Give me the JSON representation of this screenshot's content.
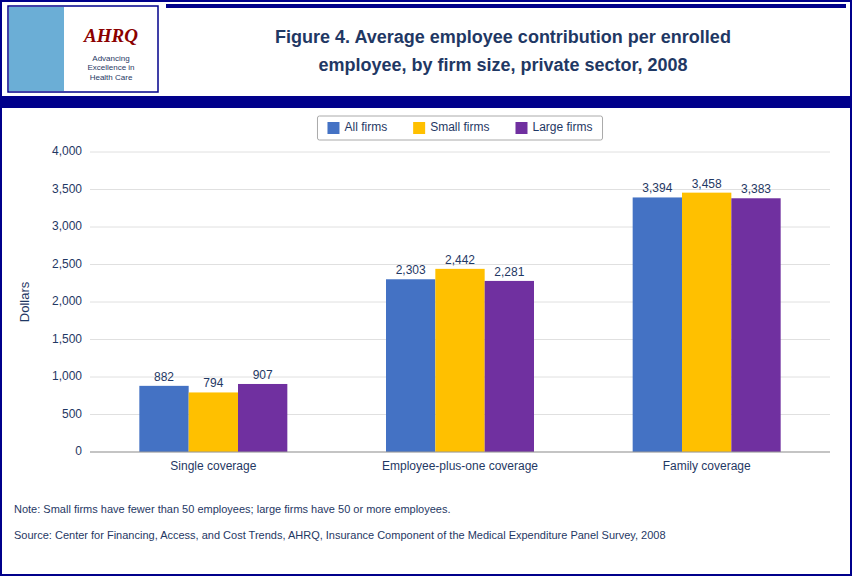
{
  "chart_data": {
    "type": "bar",
    "title": "Figure 4. Average employee contribution per enrolled\nemployee, by firm size, private sector, 2008",
    "categories": [
      "Single coverage",
      "Employee-plus-one coverage",
      "Family coverage"
    ],
    "series": [
      {
        "name": "All firms",
        "color": "#4472C4",
        "values": [
          882,
          2303,
          3394
        ],
        "value_labels": [
          "882",
          "2,303",
          "3,394"
        ]
      },
      {
        "name": "Small firms",
        "color": "#FFC000",
        "values": [
          794,
          2442,
          3458
        ],
        "value_labels": [
          "794",
          "2,442",
          "3,458"
        ]
      },
      {
        "name": "Large firms",
        "color": "#7030A0",
        "values": [
          907,
          2281,
          3383
        ],
        "value_labels": [
          "907",
          "2,281",
          "3,383"
        ]
      }
    ],
    "y_label": "Dollars",
    "ylim": [
      0,
      4000
    ],
    "yticks": [
      0,
      500,
      {
        "value": 1000,
        "label": "1,000"
      },
      {
        "value": 1500,
        "label": "1,500"
      },
      {
        "value": 2000,
        "label": "2,000"
      },
      {
        "value": 2500,
        "label": "2,500"
      },
      {
        "value": 3000,
        "label": "3,000"
      },
      {
        "value": 3500,
        "label": "3,500"
      },
      {
        "value": 4000,
        "label": "4,000"
      }
    ],
    "grid": true,
    "legend": "top",
    "data_labels": true,
    "annotations": [
      "AHRQ",
      "Advancing\nExcellence in\nHealth Care",
      "Note: Small firms have fewer than 50 employees; large firms have 50 or more employees.",
      "Source: Center for Financing, Access, and Cost Trends, AHRQ, Insurance Component of the Medical Expenditure Panel Survey, 2008"
    ]
  }
}
